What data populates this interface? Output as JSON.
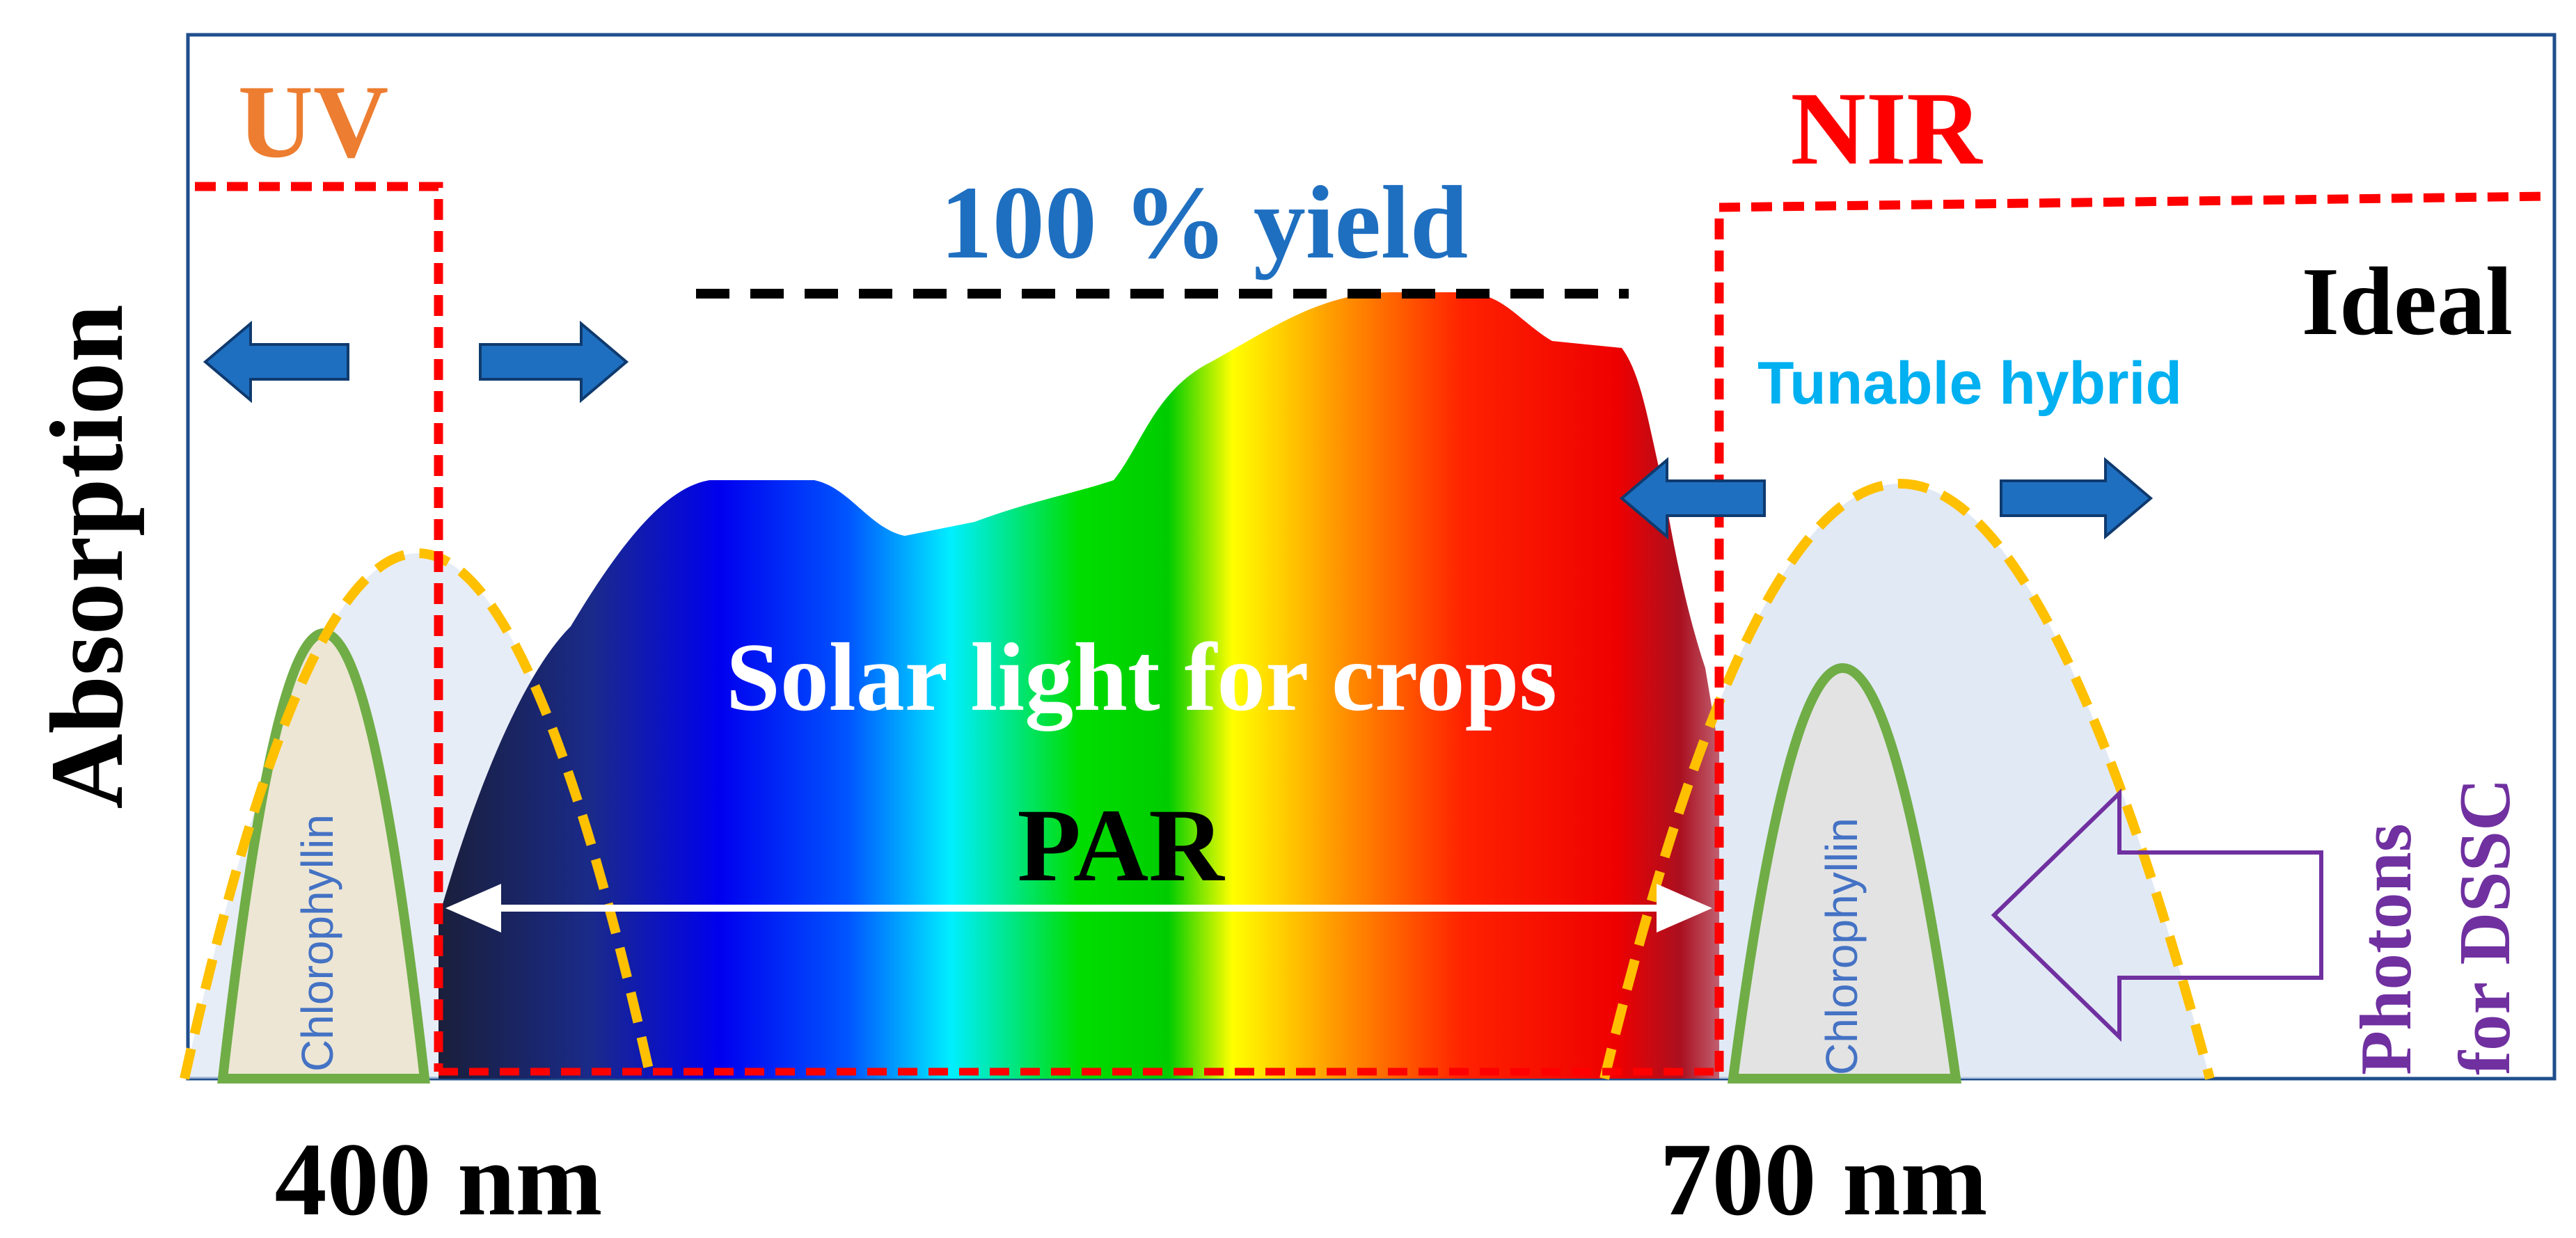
{
  "labels": {
    "y_axis": "Absorption",
    "uv": "UV",
    "nir": "NIR",
    "yield": "100 % yield",
    "ideal": "Ideal",
    "tunable": "Tunable hybrid",
    "solar": "Solar light for crops",
    "par": "PAR",
    "chlorophyllin_left": "Chlorophyllin",
    "chlorophyllin_right": "Chlorophyllin",
    "photons_line1": "Photons",
    "photons_line2": "for DSSC",
    "tick_400": "400 nm",
    "tick_700": "700 nm"
  },
  "colors": {
    "uv_text": "#ED7D31",
    "nir_text": "#FF0000",
    "yield_text": "#1F6FC0",
    "tunable_text": "#00B0F0",
    "photons_text": "#7030A0",
    "red_dash": "#FF0000",
    "orange_dash": "#FFC000",
    "chlorophyll_curve": "#70AD47",
    "arrow_fill": "#1F6FC0",
    "arrow_stroke": "#0F3A6E",
    "frame": "#1F4E8C"
  },
  "icons": [
    "arrow-left-icon",
    "arrow-right-icon",
    "hollow-arrow-left-icon"
  ]
}
